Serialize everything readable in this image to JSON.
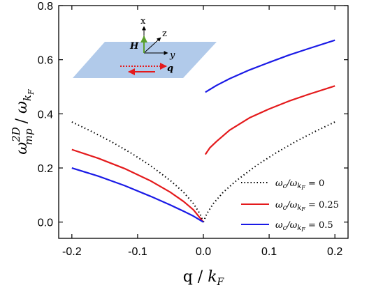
{
  "chart_data": {
    "type": "line",
    "xlabel_main": "q / ",
    "xlabel_sub": "k",
    "xlabel_subscript": "F",
    "ylabel_omega": "ω",
    "ylabel_sup": "2D",
    "ylabel_sub": "mp",
    "ylabel_den": "ω",
    "ylabel_den_sub": "k",
    "ylabel_den_subsub": "F",
    "xlim": [
      -0.22,
      0.22
    ],
    "ylim": [
      -0.06,
      0.8
    ],
    "xticks": [
      -0.2,
      -0.1,
      0.0,
      0.1,
      0.2
    ],
    "xtick_labels": [
      "-0.2",
      "-0.1",
      "0.0",
      "0.1",
      "0.2"
    ],
    "yticks": [
      0.0,
      0.2,
      0.4,
      0.6,
      0.8
    ],
    "ytick_labels": [
      "0.0",
      "0.2",
      "0.4",
      "0.6",
      "0.8"
    ],
    "legend_position": "bottom-right",
    "series": [
      {
        "name": "ω_c/ω_kF = 0",
        "legend_main": "ω",
        "legend_sub1": "c",
        "legend_mid": "/ω",
        "legend_sub2": "k",
        "legend_subsub": "F",
        "legend_value": " = 0",
        "color": "#000000",
        "style": "dotted",
        "segments": [
          {
            "x": [
              -0.2,
              -0.17,
              -0.14,
              -0.11,
              -0.08,
              -0.05,
              -0.03,
              -0.015,
              -0.005,
              0.0
            ],
            "y": [
              0.37,
              0.335,
              0.297,
              0.255,
              0.208,
              0.153,
              0.11,
              0.068,
              0.03,
              0.0
            ]
          },
          {
            "x": [
              0.0,
              0.005,
              0.015,
              0.03,
              0.05,
              0.08,
              0.11,
              0.14,
              0.17,
              0.2
            ],
            "y": [
              0.0,
              0.03,
              0.068,
              0.11,
              0.153,
              0.208,
              0.255,
              0.297,
              0.335,
              0.37
            ]
          }
        ]
      },
      {
        "name": "ω_c/ω_kF = 0.25",
        "legend_main": "ω",
        "legend_sub1": "c",
        "legend_mid": "/ω",
        "legend_sub2": "k",
        "legend_subsub": "F",
        "legend_value": " = 0.25",
        "color": "#e41a1c",
        "style": "solid",
        "segments": [
          {
            "x": [
              -0.2,
              -0.16,
              -0.12,
              -0.08,
              -0.05,
              -0.03,
              -0.015,
              0.0
            ],
            "y": [
              0.268,
              0.236,
              0.198,
              0.152,
              0.11,
              0.076,
              0.045,
              0.0
            ]
          },
          {
            "x": [
              0.003,
              0.01,
              0.02,
              0.04,
              0.07,
              0.1,
              0.13,
              0.16,
              0.2
            ],
            "y": [
              0.25,
              0.275,
              0.298,
              0.34,
              0.385,
              0.418,
              0.447,
              0.472,
              0.503
            ]
          }
        ]
      },
      {
        "name": "ω_c/ω_kF = 0.5",
        "legend_main": "ω",
        "legend_sub1": "c",
        "legend_mid": "/ω",
        "legend_sub2": "k",
        "legend_subsub": "F",
        "legend_value": " = 0.5",
        "color": "#1a1ae6",
        "style": "solid",
        "segments": [
          {
            "x": [
              -0.2,
              -0.16,
              -0.12,
              -0.08,
              -0.05,
              -0.03,
              -0.015,
              0.0
            ],
            "y": [
              0.2,
              0.17,
              0.135,
              0.095,
              0.063,
              0.04,
              0.022,
              0.0
            ]
          },
          {
            "x": [
              0.003,
              0.02,
              0.04,
              0.07,
              0.1,
              0.13,
              0.16,
              0.2
            ],
            "y": [
              0.48,
              0.505,
              0.53,
              0.562,
              0.59,
              0.617,
              0.641,
              0.672
            ]
          }
        ]
      }
    ],
    "inset": {
      "axis_x": "x",
      "axis_y": "y",
      "axis_z": "z",
      "field_label": "H",
      "wavevector_label": "q",
      "plane_color": "#a9c4e8",
      "field_color": "#5aa02c",
      "wave_color": "#e41a1c"
    }
  }
}
